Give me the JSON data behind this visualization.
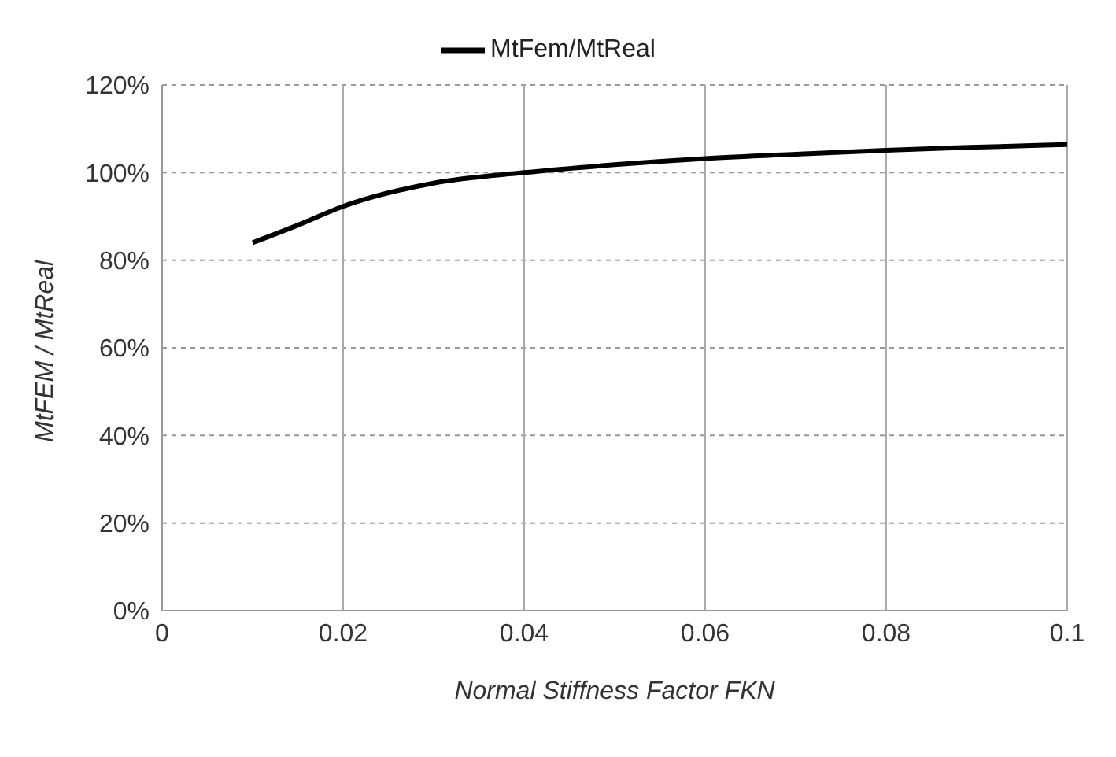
{
  "chart_data": {
    "type": "line",
    "xlabel": "Normal Stiffness Factor FKN",
    "ylabel": "MtFEM / MtReal",
    "x": [
      0.01,
      0.015,
      0.02,
      0.03,
      0.04,
      0.05,
      0.06,
      0.07,
      0.08,
      0.09,
      0.1
    ],
    "series": [
      {
        "name": "MtFem/MtReal",
        "color": "#000000",
        "values": [
          84,
          88,
          92.3,
          97.6,
          100,
          101.8,
          103.2,
          104.2,
          105.1,
          105.8,
          106.4
        ]
      }
    ],
    "xlim": [
      0,
      0.1
    ],
    "xticks": [
      0,
      0.02,
      0.04,
      0.06,
      0.08,
      0.1
    ],
    "ylim": [
      0,
      120
    ],
    "yticks": [
      {
        "value": 0,
        "label": "0%"
      },
      {
        "value": 20,
        "label": "20%"
      },
      {
        "value": 40,
        "label": "40%"
      },
      {
        "value": 60,
        "label": "60%"
      },
      {
        "value": 80,
        "label": "80%"
      },
      {
        "value": 100,
        "label": "100%"
      },
      {
        "value": 120,
        "label": "120%"
      }
    ],
    "grid": true,
    "legend": "top",
    "marker": "none",
    "line_style": "solid"
  }
}
